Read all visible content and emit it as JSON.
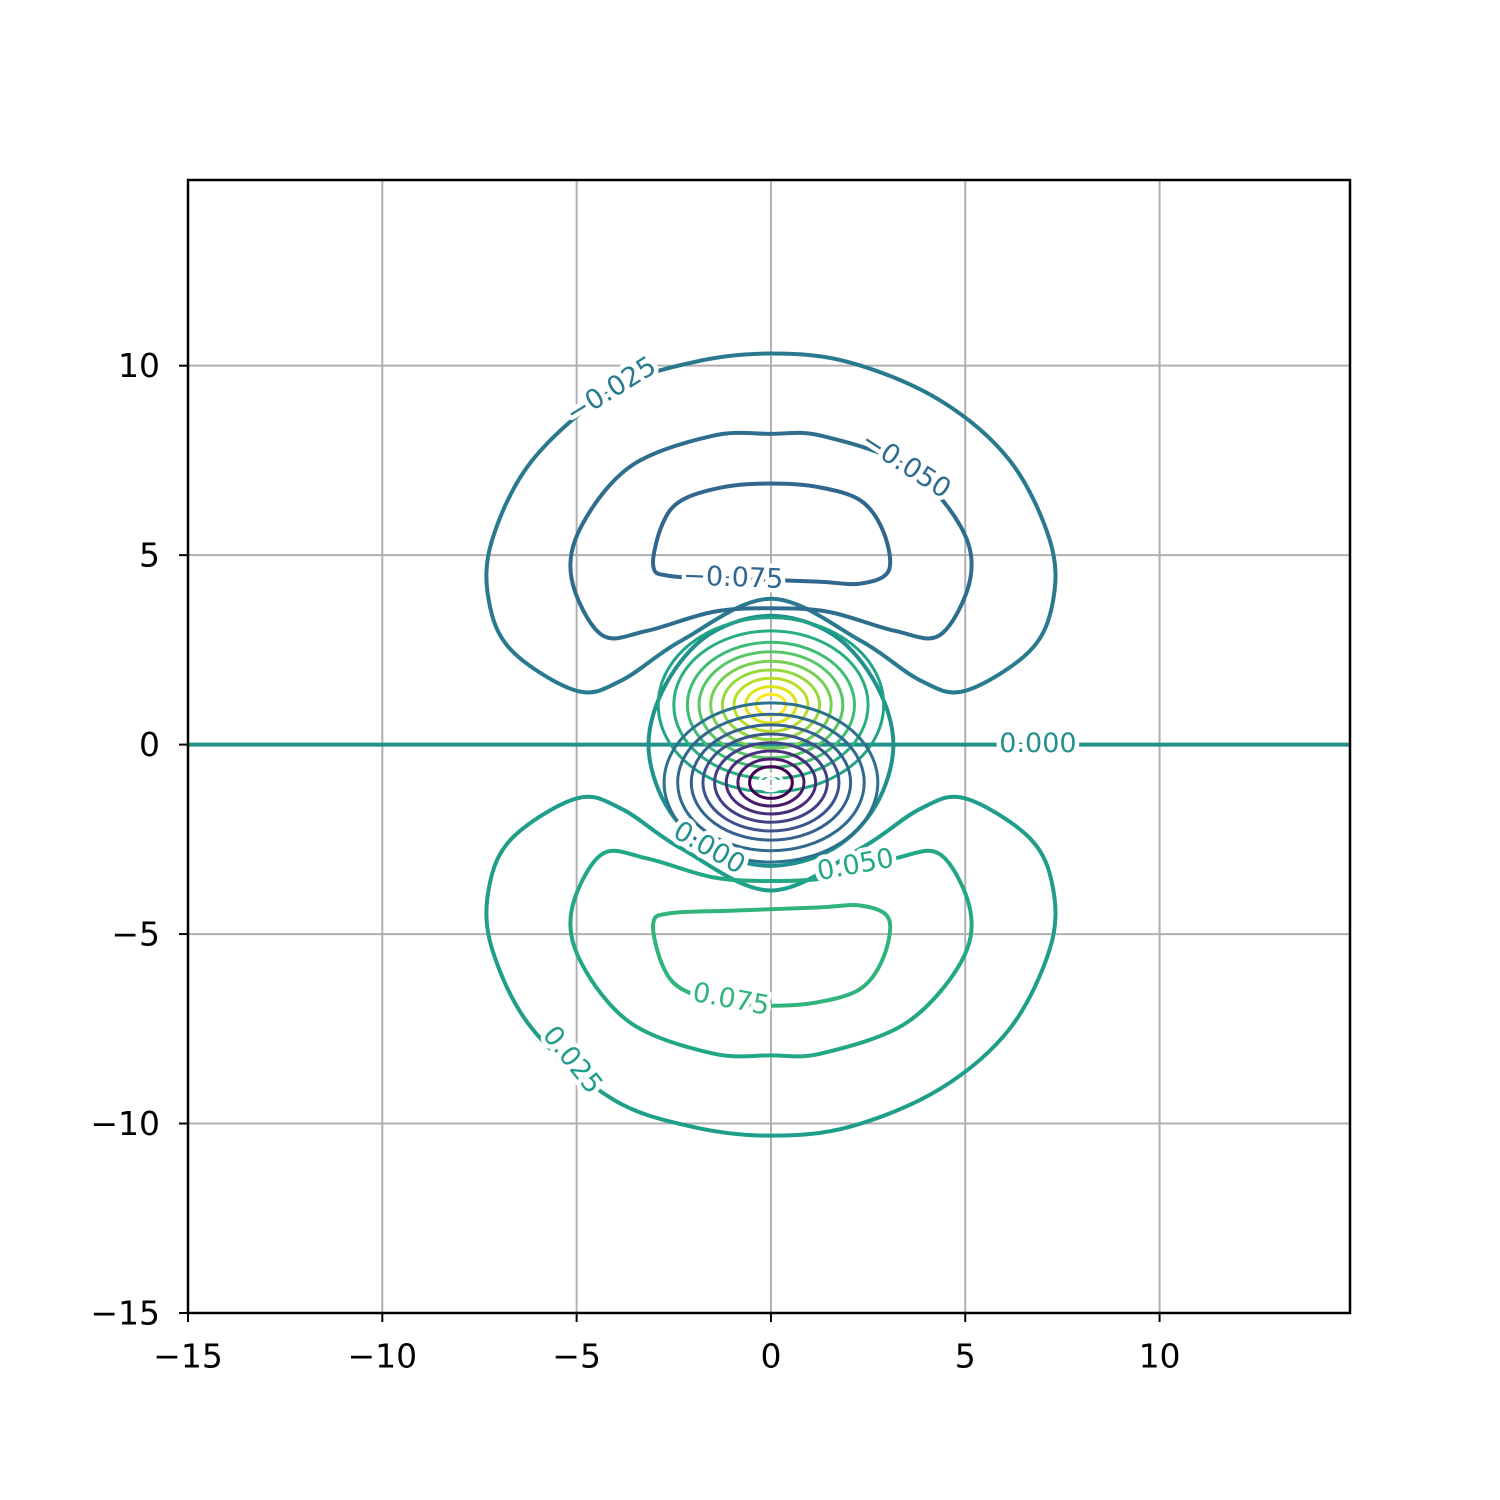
{
  "chart_data": {
    "type": "contour",
    "xlim": [
      -15,
      14.9
    ],
    "ylim": [
      -15,
      14.9
    ],
    "xticks": [
      {
        "value": -15,
        "label": "−15"
      },
      {
        "value": -10,
        "label": "−10"
      },
      {
        "value": -5,
        "label": "−5"
      },
      0,
      5,
      10
    ],
    "yticks": [
      {
        "value": -15,
        "label": "−15"
      },
      {
        "value": -10,
        "label": "−10"
      },
      {
        "value": -5,
        "label": "−5"
      },
      0,
      5,
      10
    ],
    "grid": true,
    "contours": [
      {
        "label": "−0.025",
        "color": "#297a8e",
        "closed": true,
        "label_at": [
          -4.1,
          9.34
        ],
        "x": [
          -4.1,
          -2.05,
          0,
          2.05,
          4.36,
          6.15,
          7.18,
          7.26,
          6.67,
          5.0,
          3.85,
          2.31,
          0,
          -2.31,
          -3.85,
          -5.0,
          -6.67,
          -7.26,
          -7.18,
          -6.15
        ],
        "y": [
          9.34,
          10.08,
          10.32,
          10.08,
          9.08,
          7.49,
          5.38,
          3.8,
          2.48,
          1.42,
          1.69,
          2.74,
          3.85,
          2.74,
          1.69,
          1.42,
          2.48,
          3.8,
          5.38,
          7.49
        ]
      },
      {
        "label": "−0.050",
        "color": "#2f6d8e",
        "closed": true,
        "label_at": [
          3.46,
          7.36
        ],
        "x": [
          3.46,
          4.87,
          5.13,
          4.36,
          3.2,
          1.5,
          0,
          -1.5,
          -3.2,
          -4.36,
          -5.13,
          -4.87,
          -3.59,
          -1.5,
          0,
          1.3
        ],
        "y": [
          7.36,
          5.78,
          4.38,
          2.9,
          3.0,
          3.5,
          3.6,
          3.5,
          3.0,
          2.9,
          4.38,
          5.78,
          7.36,
          8.15,
          8.2,
          8.15
        ]
      },
      {
        "label": "−0.075",
        "color": "#31668e",
        "closed": true,
        "label_at": [
          -0.97,
          4.38
        ],
        "x": [
          -0.97,
          -2.6,
          -3.03,
          -2.8,
          -2.31,
          -1.2,
          0,
          1.2,
          2.31,
          2.9,
          3.03,
          2.31,
          1.2
        ],
        "y": [
          4.38,
          4.45,
          4.72,
          5.8,
          6.44,
          6.8,
          6.89,
          6.8,
          6.44,
          5.6,
          4.59,
          4.25,
          4.3
        ]
      },
      {
        "label": "0.000",
        "color": "#21918c",
        "closed": false,
        "label_at": [
          6.87,
          0
        ],
        "x": [
          -15,
          6.87,
          14.9
        ],
        "y": [
          0,
          0,
          0
        ]
      },
      {
        "label": "0.000",
        "color": "#21918c",
        "closed": true,
        "label_at": [
          -1.6,
          -2.75
        ],
        "x": [
          -1.6,
          -2.7,
          -3.15,
          -2.7,
          -1.6,
          0,
          1.6,
          2.7,
          3.15,
          2.7,
          1.6,
          0
        ],
        "y": [
          -2.75,
          -1.6,
          0,
          1.6,
          2.9,
          3.4,
          2.9,
          1.6,
          0,
          -1.6,
          -2.75,
          -3.2
        ]
      },
      {
        "label": "0.025",
        "color": "#1f9e89",
        "closed": true,
        "label_at": [
          -5.13,
          -8.34
        ],
        "x": [
          -4.1,
          -2.05,
          0,
          2.05,
          4.36,
          6.15,
          7.18,
          7.26,
          6.67,
          5.0,
          3.85,
          2.31,
          0,
          -2.31,
          -3.85,
          -5.0,
          -6.67,
          -7.26,
          -7.18,
          -6.15
        ],
        "y": [
          -9.34,
          -10.08,
          -10.32,
          -10.08,
          -9.08,
          -7.49,
          -5.38,
          -3.8,
          -2.48,
          -1.42,
          -1.69,
          -2.74,
          -3.85,
          -2.74,
          -1.69,
          -1.42,
          -2.48,
          -3.8,
          -5.38,
          -7.49
        ]
      },
      {
        "label": "0.050",
        "color": "#22a884",
        "closed": true,
        "label_at": [
          2.18,
          -3.2
        ],
        "x": [
          3.46,
          4.87,
          5.13,
          4.36,
          3.2,
          1.5,
          0,
          -1.5,
          -3.2,
          -4.36,
          -5.13,
          -4.87,
          -3.59,
          -1.5,
          0,
          1.3
        ],
        "y": [
          -7.36,
          -5.78,
          -4.38,
          -2.9,
          -3.0,
          -3.5,
          -3.6,
          -3.5,
          -3.0,
          -2.9,
          -4.38,
          -5.78,
          -7.36,
          -8.15,
          -8.2,
          -8.15
        ]
      },
      {
        "label": "0.075",
        "color": "#2fb47c",
        "closed": true,
        "label_at": [
          -1.03,
          -6.75
        ],
        "x": [
          -0.97,
          -2.6,
          -3.03,
          -2.8,
          -2.31,
          -1.2,
          0,
          1.2,
          2.31,
          2.9,
          3.03,
          2.31,
          1.2
        ],
        "y": [
          -4.38,
          -4.45,
          -4.72,
          -5.8,
          -6.44,
          -6.8,
          -6.89,
          -6.8,
          -6.44,
          -5.6,
          -4.59,
          -4.25,
          -4.3
        ]
      }
    ],
    "rings": [
      {
        "color": "#20a386",
        "cx": 0,
        "cy": 1.05,
        "rx": 2.9,
        "ry": 2.3
      },
      {
        "color": "#29af7f",
        "cx": 0,
        "cy": 1.05,
        "rx": 2.5,
        "ry": 1.95
      },
      {
        "color": "#3dbc74",
        "cx": 0,
        "cy": 1.05,
        "rx": 2.15,
        "ry": 1.65
      },
      {
        "color": "#56c667",
        "cx": 0,
        "cy": 1.05,
        "rx": 1.85,
        "ry": 1.4
      },
      {
        "color": "#75d054",
        "cx": 0,
        "cy": 1.05,
        "rx": 1.55,
        "ry": 1.15
      },
      {
        "color": "#95d840",
        "cx": 0,
        "cy": 1.05,
        "rx": 1.25,
        "ry": 0.92
      },
      {
        "color": "#b8de29",
        "cx": 0,
        "cy": 1.05,
        "rx": 0.95,
        "ry": 0.7
      },
      {
        "color": "#dde318",
        "cx": 0,
        "cy": 1.05,
        "rx": 0.65,
        "ry": 0.48
      },
      {
        "color": "#fde725",
        "cx": 0,
        "cy": 1.05,
        "rx": 0.38,
        "ry": 0.28
      },
      {
        "color": "#ffffff",
        "cx": 0,
        "cy": 1.0,
        "rx": 0.16,
        "ry": 0.13
      },
      {
        "color": "#2c728e",
        "cx": 0,
        "cy": -1.0,
        "rx": 2.75,
        "ry": 2.1
      },
      {
        "color": "#306a8e",
        "cx": 0,
        "cy": -1.0,
        "rx": 2.4,
        "ry": 1.8
      },
      {
        "color": "#34618d",
        "cx": 0,
        "cy": -1.0,
        "rx": 2.05,
        "ry": 1.52
      },
      {
        "color": "#3b528b",
        "cx": 0,
        "cy": -1.0,
        "rx": 1.75,
        "ry": 1.28
      },
      {
        "color": "#424086",
        "cx": 0,
        "cy": -1.0,
        "rx": 1.45,
        "ry": 1.05
      },
      {
        "color": "#472d7b",
        "cx": 0,
        "cy": -1.0,
        "rx": 1.15,
        "ry": 0.83
      },
      {
        "color": "#481b6d",
        "cx": 0,
        "cy": -1.0,
        "rx": 0.85,
        "ry": 0.62
      },
      {
        "color": "#440154",
        "cx": 0,
        "cy": -1.0,
        "rx": 0.55,
        "ry": 0.42
      },
      {
        "color": "#ffffff",
        "cx": 0,
        "cy": -1.0,
        "rx": 0.3,
        "ry": 0.22
      },
      {
        "color": "#ffffff",
        "cx": 0,
        "cy": -1.0,
        "rx": 0.14,
        "ry": 0.11
      }
    ]
  }
}
